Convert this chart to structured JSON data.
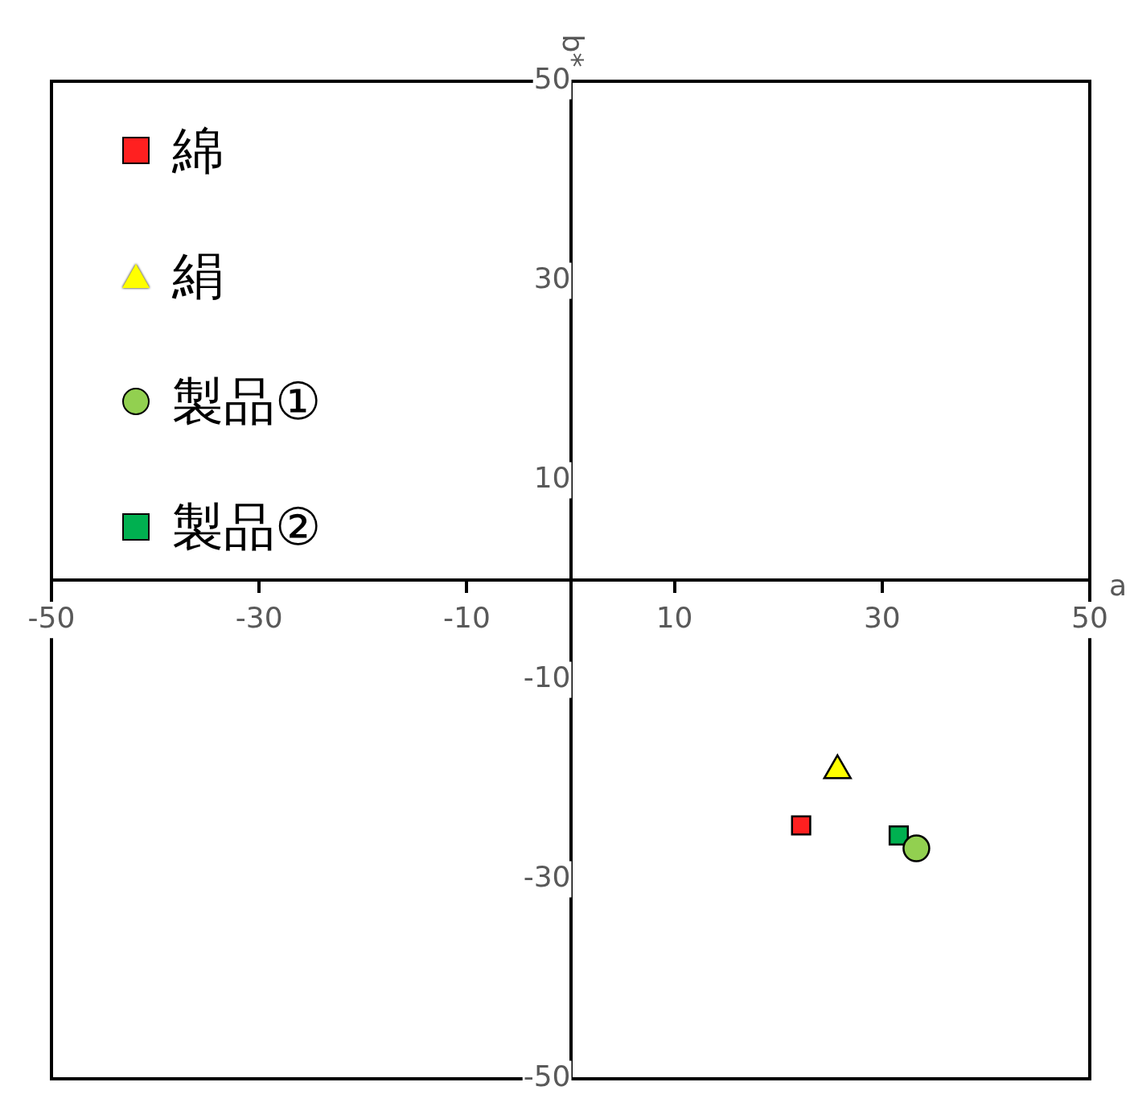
{
  "chart_data": {
    "type": "scatter",
    "xlabel": "a",
    "ylabel": "b*",
    "xlim": [
      -50,
      50
    ],
    "ylim": [
      -50,
      50
    ],
    "xticks": [
      -50,
      -30,
      -10,
      10,
      30,
      50
    ],
    "yticks": [
      -50,
      -30,
      -10,
      10,
      30,
      50
    ],
    "grid": false,
    "legend": "top left",
    "series": [
      {
        "name": "綿",
        "color": "#ff2020",
        "marker": "square",
        "x": [
          22.2
        ],
        "values": [
          -24.6
        ]
      },
      {
        "name": "絹",
        "color": "#ffff00",
        "marker": "triangle",
        "x": [
          25.7
        ],
        "values": [
          -19.1
        ]
      },
      {
        "name": "製品①",
        "color": "#92d050",
        "marker": "circle",
        "x": [
          33.3
        ],
        "values": [
          -26.9
        ]
      },
      {
        "name": "製品②",
        "color": "#00b050",
        "marker": "square",
        "x": [
          31.6
        ],
        "values": [
          -25.6
        ]
      }
    ]
  }
}
